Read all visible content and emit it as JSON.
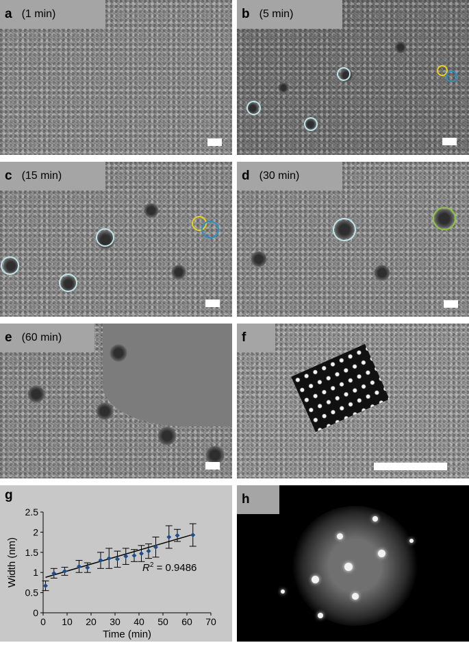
{
  "panels": {
    "a": {
      "letter": "a",
      "time": "(1 min)"
    },
    "b": {
      "letter": "b",
      "time": "(5 min)"
    },
    "c": {
      "letter": "c",
      "time": "(15 min)"
    },
    "d": {
      "letter": "d",
      "time": "(30 min)"
    },
    "e": {
      "letter": "e",
      "time": "(60 min)"
    },
    "f": {
      "letter": "f"
    },
    "g": {
      "letter": "g"
    },
    "h": {
      "letter": "h"
    }
  },
  "circle_colors": {
    "highlight": "#bfe6ea",
    "yellow": "#e8d320",
    "blue": "#2a8fc4",
    "green": "#8cc43c"
  },
  "chart_data": {
    "type": "scatter",
    "title": "",
    "xlabel": "Time (min)",
    "ylabel": "Width (nm)",
    "xlim": [
      0,
      70
    ],
    "ylim": [
      0,
      2.5
    ],
    "x_ticks": [
      0,
      10,
      20,
      30,
      40,
      50,
      60,
      70
    ],
    "y_ticks": [
      0,
      0.5,
      1,
      1.5,
      2,
      2.5
    ],
    "series": [
      {
        "marker_color": "#1f4e8c",
        "x": [
          1,
          4.5,
          9,
          15,
          18.5,
          24,
          27.5,
          31,
          34.5,
          38,
          41,
          44,
          47,
          52.5,
          56,
          62.5
        ],
        "y": [
          0.67,
          0.98,
          1.03,
          1.15,
          1.12,
          1.3,
          1.35,
          1.33,
          1.4,
          1.42,
          1.47,
          1.53,
          1.63,
          1.88,
          1.92,
          1.93
        ],
        "err": [
          0.12,
          0.12,
          0.1,
          0.15,
          0.12,
          0.2,
          0.25,
          0.2,
          0.2,
          0.15,
          0.2,
          0.18,
          0.25,
          0.28,
          0.15,
          0.28
        ]
      }
    ],
    "trendline": {
      "x": [
        1,
        63
      ],
      "y": [
        0.88,
        1.95
      ]
    },
    "annotation": {
      "r_label": "R",
      "r_sup": "2",
      "r_value": " = 0.9486"
    }
  }
}
